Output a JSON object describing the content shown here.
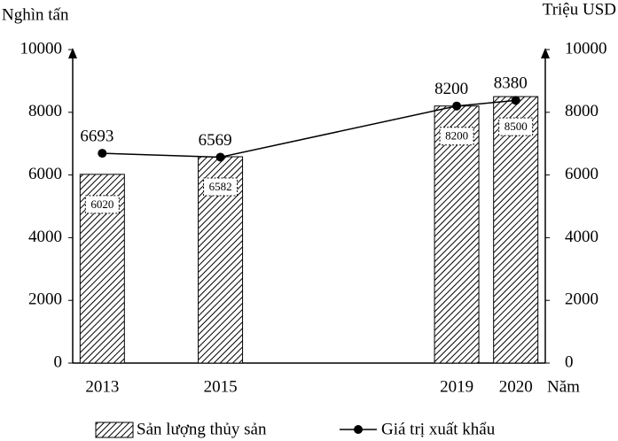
{
  "chart_data": {
    "type": "combo",
    "y_label": "Nghìn tấn",
    "y2_label": "Triệu USD",
    "x_label": "Năm",
    "x": [
      2013,
      2015,
      2019,
      2020
    ],
    "xlim": [
      2012.5,
      2020.5
    ],
    "ylim": [
      0,
      10000
    ],
    "yticks": [
      0,
      2000,
      4000,
      6000,
      8000,
      10000
    ],
    "y2lim": [
      0,
      10000
    ],
    "y2ticks": [
      0,
      2000,
      4000,
      6000,
      8000,
      10000
    ],
    "series": [
      {
        "name": "Sản lượng thủy sản",
        "type": "bar",
        "color": "#000000",
        "values": [
          6020,
          6582,
          8200,
          8500
        ]
      },
      {
        "name": "Giá trị xuất khẩu",
        "type": "line",
        "color": "#000000",
        "axis": "y2",
        "values": [
          6693,
          6569,
          8200,
          8380
        ]
      }
    ]
  }
}
